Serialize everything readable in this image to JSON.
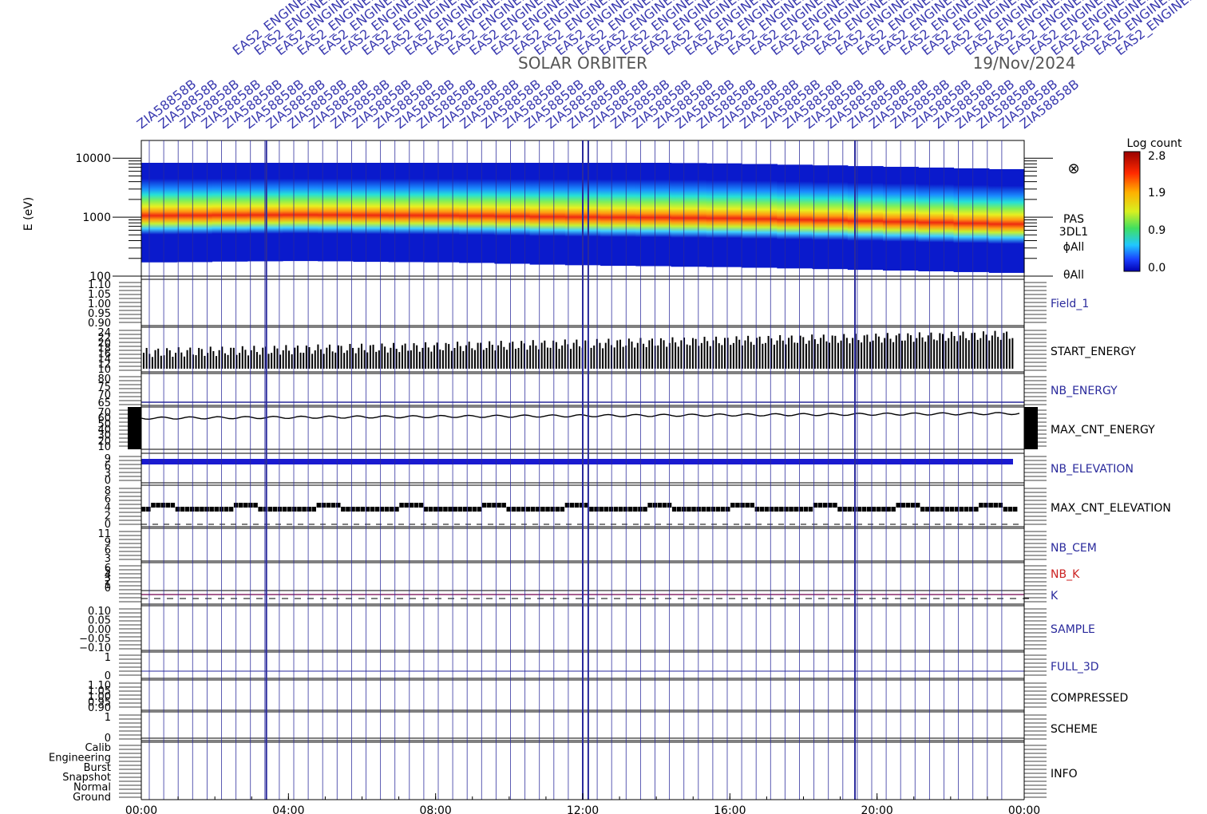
{
  "header": {
    "title": "SOLAR ORBITER",
    "date": "19/Nov/2024",
    "slanted_label_word": "ZIA58858B",
    "slanted_label_word_2": "EAS2_ENGINEERING",
    "slanted_label_count": 42
  },
  "colorbar": {
    "title": "Log count",
    "ticks": [
      "2.8",
      "1.9",
      "0.9",
      "0.0"
    ]
  },
  "spectrogram_side": {
    "symbol": "⊗",
    "lines": [
      "PAS",
      "3DL1",
      "ϕAll",
      "θAll"
    ]
  },
  "colors": {
    "blue": "#2a2a9c",
    "red": "#cc2222",
    "purple": "#8a2a6a",
    "black": "#000000"
  },
  "chart_data": {
    "type": "heatmap",
    "x_tick_labels": [
      "00:00",
      "04:00",
      "08:00",
      "12:00",
      "16:00",
      "20:00",
      "00:00"
    ],
    "x_range_hours": [
      0,
      24
    ],
    "spectrogram": {
      "ylabel": "E (eV)",
      "y_tick_labels": [
        "10000",
        "1000",
        "100"
      ],
      "y_range": [
        100,
        20000
      ],
      "log_scale": true,
      "peak_energy_eV": [
        950,
        960,
        980,
        990,
        1000,
        990,
        970,
        960,
        950,
        930,
        900,
        870,
        850,
        830,
        820,
        800,
        790,
        770,
        750,
        730,
        710,
        690,
        670,
        650,
        630
      ]
    },
    "panels": [
      {
        "name": "Field_1",
        "color": "blue",
        "y_tick_labels": [
          "1.10",
          "1.05",
          "1.00",
          "0.95",
          "0.90"
        ]
      },
      {
        "name": "START_ENERGY",
        "color": "black",
        "y_tick_labels": [
          "24",
          "22",
          "20",
          "18",
          "16",
          "14",
          "12",
          "10"
        ]
      },
      {
        "name": "NB_ENERGY",
        "color": "blue",
        "y_tick_labels": [
          "80",
          "75",
          "70",
          "65"
        ]
      },
      {
        "name": "MAX_CNT_ENERGY",
        "color": "black",
        "y_tick_labels": [
          "70",
          "60",
          "50",
          "40",
          "30",
          "20",
          "10"
        ]
      },
      {
        "name": "NB_ELEVATION",
        "color": "blue",
        "y_tick_labels": [
          "9",
          "6",
          "3",
          "0"
        ]
      },
      {
        "name": "MAX_CNT_ELEVATION",
        "color": "black",
        "y_tick_labels": [
          "8",
          "6",
          "4",
          "2",
          "0"
        ]
      },
      {
        "name": "NB_CEM",
        "color": "blue",
        "y_tick_labels": [
          "11",
          "9",
          "6",
          "3"
        ]
      },
      {
        "name": "NB_K",
        "color": "red",
        "y_tick_labels": [
          "6",
          "5",
          "4",
          "3",
          "2",
          "1",
          "0"
        ]
      },
      {
        "name": "K",
        "color": "blue",
        "y_tick_labels": []
      },
      {
        "name": "SAMPLE",
        "color": "blue",
        "y_tick_labels": [
          "0.10",
          "0.05",
          "0.00",
          "−0.05",
          "−0.10"
        ]
      },
      {
        "name": "FULL_3D",
        "color": "blue",
        "y_tick_labels": [
          "1",
          "0"
        ]
      },
      {
        "name": "COMPRESSED",
        "color": "black",
        "y_tick_labels": [
          "1.10",
          "1.05",
          "1.00",
          "0.95",
          "0.90"
        ]
      },
      {
        "name": "SCHEME",
        "color": "black",
        "y_tick_labels": [
          "1",
          "0"
        ]
      },
      {
        "name": "INFO",
        "color": "black",
        "y_tick_labels": [
          "Calib",
          "Engineering",
          "Burst",
          "Snapshot",
          "Normal",
          "Ground"
        ]
      }
    ],
    "start_energy_level": 15,
    "max_cnt_energy_level": 55,
    "nb_elevation_level": 9,
    "max_cnt_elevation_level": 4
  }
}
